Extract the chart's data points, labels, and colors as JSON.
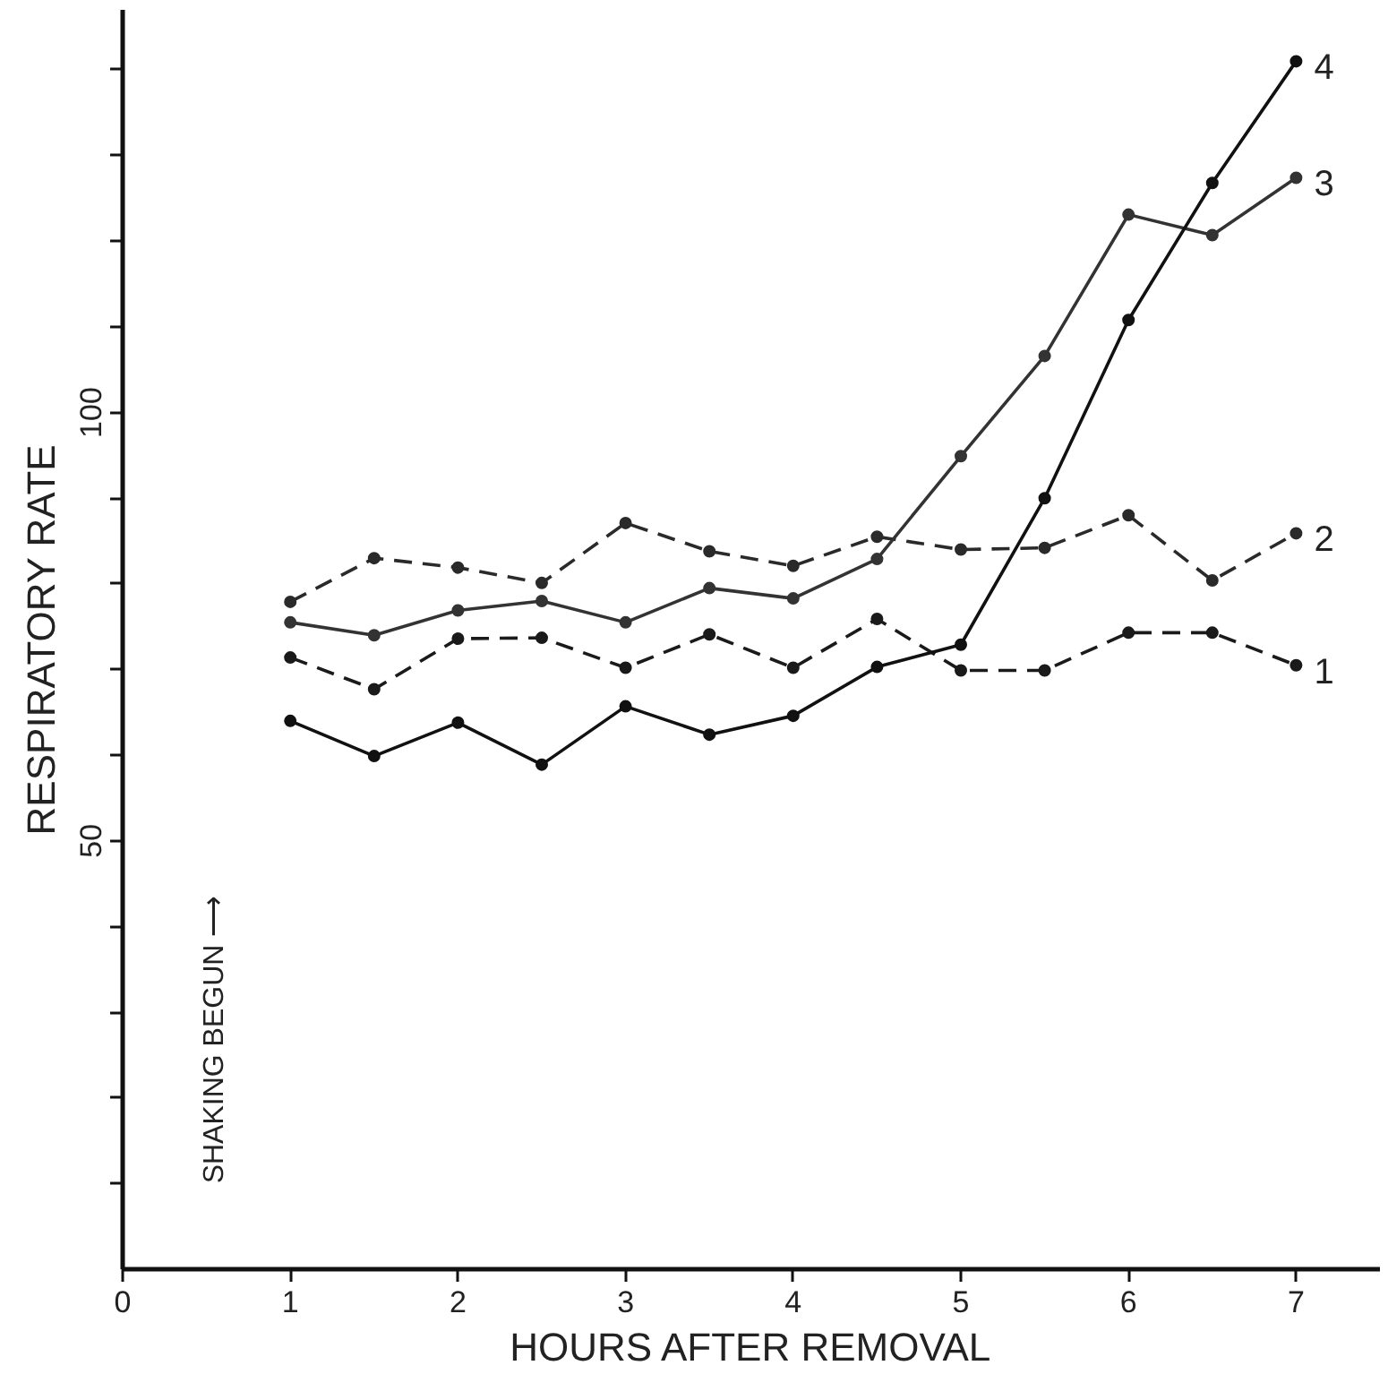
{
  "chart_data": {
    "type": "line",
    "xlabel": "HOURS AFTER REMOVAL",
    "ylabel": "RESPIRATORY RATE",
    "annotations": [
      "SHAKING BEGUN ⟶"
    ],
    "x": [
      1,
      1.5,
      2,
      2.5,
      3,
      3.5,
      4,
      4.5,
      5,
      5.5,
      6,
      6.5,
      7
    ],
    "series": [
      {
        "name": "1",
        "color": "#1a1a1a",
        "line_style": "dashed",
        "values": [
          71.4,
          67.7,
          73.6,
          73.7,
          70.2,
          74.1,
          70.2,
          75.9,
          69.9,
          69.9,
          74.3,
          74.3,
          70.5
        ]
      },
      {
        "name": "2",
        "color": "#2a2a2a",
        "line_style": "dashed",
        "values": [
          77.9,
          83.0,
          81.9,
          80.1,
          87.1,
          83.8,
          82.1,
          85.5,
          84.0,
          84.2,
          88.0,
          80.4,
          85.9
        ]
      },
      {
        "name": "3",
        "color": "#333333",
        "line_style": "solid",
        "values": [
          75.5,
          74.0,
          76.9,
          78.0,
          75.5,
          79.5,
          78.3,
          82.9,
          94.9,
          106.6,
          123.1,
          120.7,
          127.4
        ]
      },
      {
        "name": "4",
        "color": "#111111",
        "line_style": "solid",
        "values": [
          64.0,
          59.9,
          63.8,
          58.9,
          65.7,
          62.4,
          64.6,
          70.3,
          72.9,
          90.0,
          110.8,
          126.8,
          141.0
        ]
      }
    ],
    "xlim": [
      0,
      7.5
    ],
    "ylim": [
      0,
      147
    ],
    "xticks": [
      0,
      1,
      2,
      3,
      4,
      5,
      6,
      7
    ],
    "yticks": [
      {
        "value": 10,
        "label": null
      },
      {
        "value": 20,
        "label": null
      },
      {
        "value": 30,
        "label": null
      },
      {
        "value": 40,
        "label": null
      },
      50,
      {
        "value": 60,
        "label": null
      },
      {
        "value": 70,
        "label": null
      },
      {
        "value": 80,
        "label": null
      },
      {
        "value": 90,
        "label": null
      },
      100,
      {
        "value": 110,
        "label": null
      },
      {
        "value": 120,
        "label": null
      },
      {
        "value": 130,
        "label": null
      },
      {
        "value": 140,
        "label": null
      }
    ],
    "grid": false,
    "legend": "right",
    "marker": "circle"
  }
}
